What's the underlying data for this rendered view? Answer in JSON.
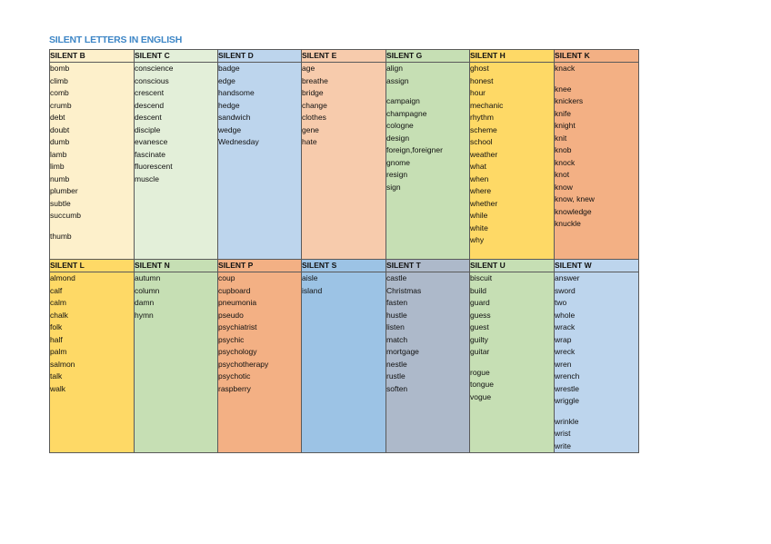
{
  "title": "SILENT LETTERS IN ENGLISH",
  "colors": {
    "title": "#3d86c6",
    "silent_b": "#fdf0cb",
    "silent_c": "#e3efd9",
    "silent_d": "#bdd5ed",
    "silent_e": "#f7cbac",
    "silent_g": "#c6dfb4",
    "silent_h": "#fed966",
    "silent_k": "#f3b084",
    "silent_l": "#fed966",
    "silent_n": "#c6dfb4",
    "silent_p": "#f3b084",
    "silent_s": "#9cc3e5",
    "silent_t": "#adb9ca",
    "silent_u": "#c6dfb4",
    "silent_w": "#bdd5ed"
  },
  "rows": [
    [
      {
        "header": "SILENT B",
        "words": [
          "bomb",
          "climb",
          "comb",
          "crumb",
          "debt",
          "doubt",
          "dumb",
          "lamb",
          "limb",
          "numb",
          "plumber",
          "subtle",
          "succumb",
          "",
          "thumb"
        ]
      },
      {
        "header": "SILENT C",
        "words": [
          "conscience",
          "conscious",
          "crescent",
          "descend",
          "descent",
          "disciple",
          "evanesce",
          "fascinate",
          "fluorescent",
          "muscle"
        ]
      },
      {
        "header": "SILENT D",
        "words": [
          "badge",
          "edge",
          "handsome",
          "hedge",
          "sandwich",
          "wedge",
          "Wednesday"
        ]
      },
      {
        "header": "SILENT E",
        "words": [
          "age",
          "breathe",
          "bridge",
          "change",
          "clothes",
          "gene",
          "hate"
        ]
      },
      {
        "header": "SILENT G",
        "words": [
          "align",
          "assign",
          "",
          "campaign",
          "champagne",
          "cologne",
          "design",
          "foreign,foreigner",
          "gnome",
          "resign",
          "sign"
        ]
      },
      {
        "header": "SILENT H",
        "words": [
          "ghost",
          "honest",
          "hour",
          "mechanic",
          "rhythm",
          "scheme",
          "school",
          "weather",
          "what",
          "when",
          "where",
          "whether",
          "while",
          "white",
          "why"
        ]
      },
      {
        "header": "SILENT K",
        "words": [
          "knack",
          "",
          "knee",
          "knickers",
          "knife",
          "knight",
          "knit",
          "knob",
          "knock",
          "knot",
          "know",
          "know, knew",
          "knowledge",
          "knuckle"
        ]
      }
    ],
    [
      {
        "header": "SILENT L",
        "words": [
          "almond",
          "calf",
          "calm",
          "chalk",
          "folk",
          "half",
          "palm",
          "salmon",
          "talk",
          "walk"
        ]
      },
      {
        "header": "SILENT N",
        "words": [
          "autumn",
          "column",
          "damn",
          "hymn"
        ]
      },
      {
        "header": "SILENT  P",
        "words": [
          "coup",
          "cupboard",
          "pneumonia",
          "pseudo",
          "psychiatrist",
          "psychic",
          "psychology",
          "psychotherapy",
          "psychotic",
          "raspberry"
        ]
      },
      {
        "header": "SILENT  S",
        "words": [
          "aisle",
          "island"
        ]
      },
      {
        "header": "SILENT T",
        "words": [
          "castle",
          "Christmas",
          "fasten",
          "hustle",
          "listen",
          "match",
          "mortgage",
          "nestle",
          "rustle",
          "soften"
        ]
      },
      {
        "header": "SILENT U",
        "words": [
          "biscuit",
          "build",
          "guard",
          "guess",
          "guest",
          "guilty",
          "guitar",
          "",
          "rogue",
          "tongue",
          "vogue"
        ]
      },
      {
        "header": "SILENT W",
        "words": [
          "answer",
          "sword",
          "two",
          "whole",
          "wrack",
          "wrap",
          "wreck",
          "wren",
          "wrench",
          "wrestle",
          "wriggle",
          "",
          "wrinkle",
          "wrist",
          "write"
        ]
      }
    ]
  ]
}
